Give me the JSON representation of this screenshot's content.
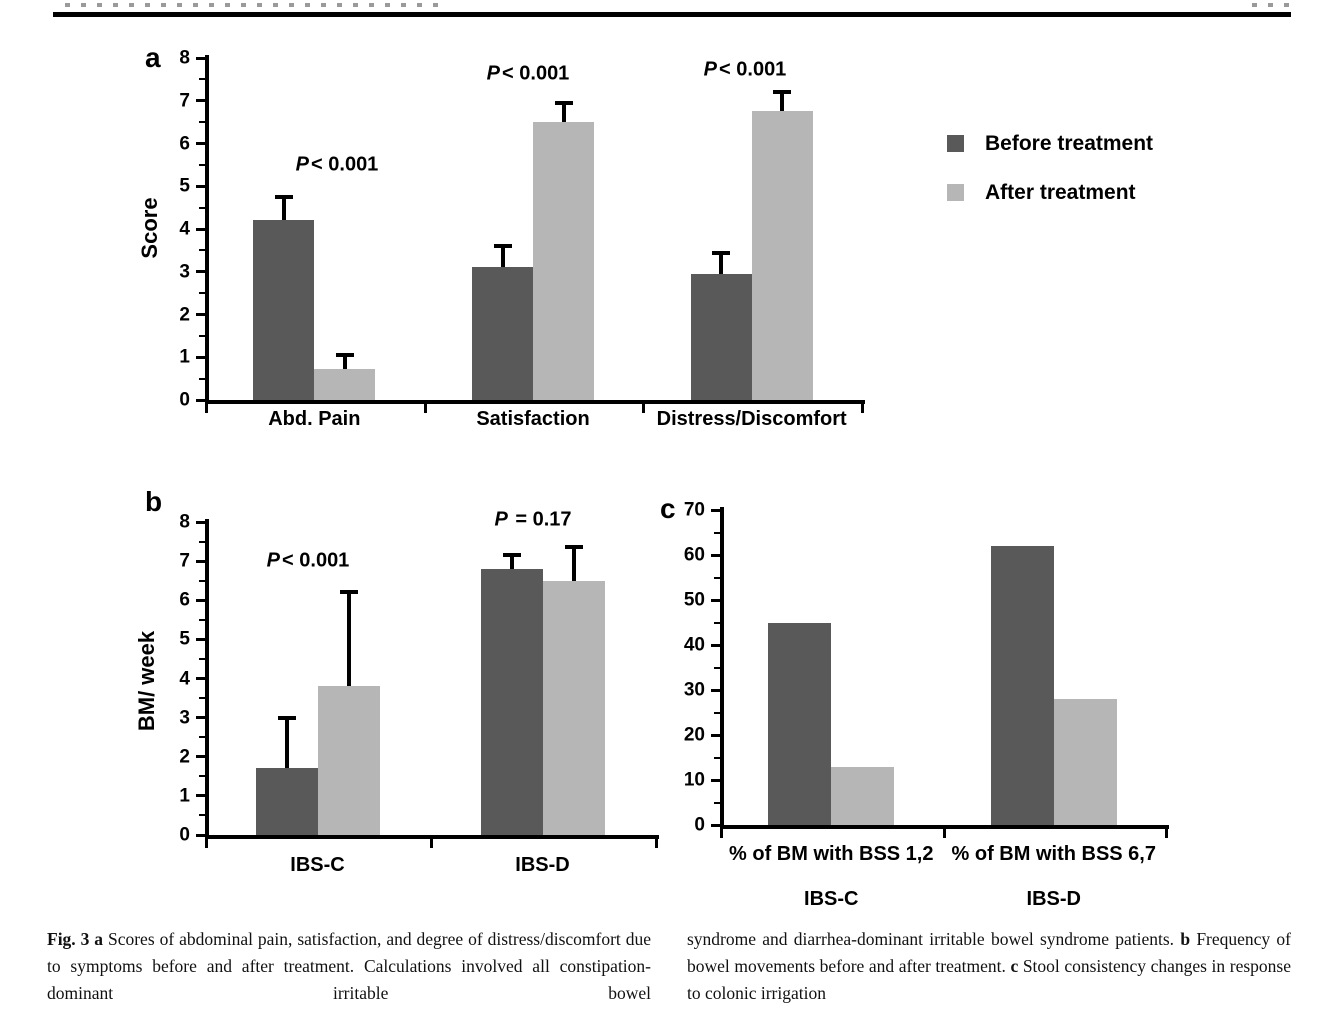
{
  "legend": {
    "items": [
      {
        "label": "Before treatment",
        "color": "#595959"
      },
      {
        "label": "After treatment",
        "color": "#b6b6b6"
      }
    ]
  },
  "chart_data": [
    {
      "id": "a",
      "type": "bar",
      "panel_label": "a",
      "title": "",
      "xlabel": "",
      "ylabel": "Score",
      "ylim": [
        0,
        8
      ],
      "ytick_step": 1,
      "grid": false,
      "legend_position": "right-of-chart",
      "categories": [
        {
          "label": "Abd. Pain"
        },
        {
          "label": "Satisfaction"
        },
        {
          "label": "Distress/Discomfort"
        }
      ],
      "series": [
        {
          "name": "Before treatment",
          "color": "#595959",
          "values": [
            4.2,
            3.1,
            2.95
          ],
          "error_plus": [
            0.55,
            0.5,
            0.5
          ]
        },
        {
          "name": "After treatment",
          "color": "#b6b6b6",
          "values": [
            0.73,
            6.5,
            6.75
          ],
          "error_plus": [
            0.32,
            0.45,
            0.45
          ]
        }
      ],
      "annotations": [
        {
          "text": "P< 0.001",
          "group": 0
        },
        {
          "text": "P< 0.001",
          "group": 1
        },
        {
          "text": "P< 0.001",
          "group": 2
        }
      ]
    },
    {
      "id": "b",
      "type": "bar",
      "panel_label": "b",
      "title": "",
      "xlabel": "",
      "ylabel": "BM/ week",
      "ylim": [
        0,
        8
      ],
      "ytick_step": 1,
      "grid": false,
      "categories": [
        {
          "label": "IBS-C"
        },
        {
          "label": "IBS-D"
        }
      ],
      "series": [
        {
          "name": "Before treatment",
          "color": "#595959",
          "values": [
            1.7,
            6.8
          ],
          "error_plus": [
            1.3,
            0.35
          ]
        },
        {
          "name": "After treatment",
          "color": "#b6b6b6",
          "values": [
            3.8,
            6.5
          ],
          "error_plus": [
            2.4,
            0.85
          ]
        }
      ],
      "annotations": [
        {
          "text": "P< 0.001",
          "group": 0
        },
        {
          "text": "P = 0.17",
          "group": 1
        }
      ]
    },
    {
      "id": "c",
      "type": "bar",
      "panel_label": "c",
      "title": "",
      "xlabel": "",
      "ylabel": "",
      "ylim": [
        0,
        70
      ],
      "ytick_step": 10,
      "grid": false,
      "categories": [
        {
          "label": "% of BM with BSS 1,2",
          "sublabel": "IBS-C"
        },
        {
          "label": "% of BM with BSS 6,7",
          "sublabel": "IBS-D"
        }
      ],
      "series": [
        {
          "name": "Before treatment",
          "color": "#595959",
          "values": [
            45,
            62
          ]
        },
        {
          "name": "After treatment",
          "color": "#b6b6b6",
          "values": [
            13,
            28
          ]
        }
      ],
      "annotations": []
    }
  ],
  "caption": {
    "left_segments": [
      {
        "text": "Fig. 3 a ",
        "bold": true
      },
      {
        "text": "Scores of abdominal pain, satisfaction, and degree of distress/discomfort due to symptoms before and after treatment. Calculations involved all constipation-dominant irritable bowel",
        "bold": false
      }
    ],
    "right_segments": [
      {
        "text": "syndrome and diarrhea-dominant irritable bowel syndrome patients. ",
        "bold": false
      },
      {
        "text": "b ",
        "bold": true
      },
      {
        "text": "Frequency of bowel movements before and after treatment. ",
        "bold": false
      },
      {
        "text": "c ",
        "bold": true
      },
      {
        "text": "Stool consistency changes in response to colonic irrigation",
        "bold": false
      }
    ]
  }
}
